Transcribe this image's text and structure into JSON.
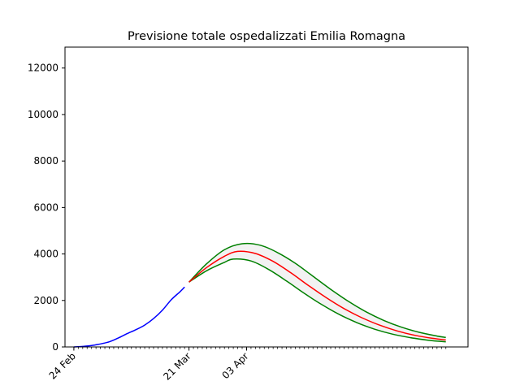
{
  "chart_data": {
    "type": "line",
    "title": "Previsione totale ospedalizzati Emilia Romagna",
    "xlabel": "",
    "ylabel": "",
    "x_axis": {
      "start": "2020-02-22",
      "end": "2020-05-23",
      "major_ticks": [
        {
          "date": "2020-02-24",
          "label": "24 Feb"
        },
        {
          "date": "2020-03-21",
          "label": "21 Mar"
        },
        {
          "date": "2020-04-03",
          "label": "03 Apr"
        }
      ],
      "minor_ticks_daily": true
    },
    "ylim": [
      0,
      12900
    ],
    "yticks": [
      0,
      2000,
      4000,
      6000,
      8000,
      10000,
      12000
    ],
    "grid": false,
    "series": [
      {
        "role": "observed",
        "color": "#0000ff",
        "points": [
          [
            "2020-02-24",
            0
          ],
          [
            "2020-02-26",
            20
          ],
          [
            "2020-02-28",
            60
          ],
          [
            "2020-03-01",
            130
          ],
          [
            "2020-03-03",
            220
          ],
          [
            "2020-03-05",
            380
          ],
          [
            "2020-03-07",
            570
          ],
          [
            "2020-03-09",
            740
          ],
          [
            "2020-03-11",
            940
          ],
          [
            "2020-03-13",
            1220
          ],
          [
            "2020-03-15",
            1580
          ],
          [
            "2020-03-17",
            2030
          ],
          [
            "2020-03-19",
            2380
          ],
          [
            "2020-03-20",
            2580
          ]
        ]
      },
      {
        "role": "forecast-upper",
        "color": "#008000",
        "points": [
          [
            "2020-03-21",
            2790
          ],
          [
            "2020-03-25",
            3580
          ],
          [
            "2020-03-29",
            4180
          ],
          [
            "2020-04-02",
            4440
          ],
          [
            "2020-04-06",
            4380
          ],
          [
            "2020-04-10",
            4060
          ],
          [
            "2020-04-14",
            3600
          ],
          [
            "2020-04-18",
            3040
          ],
          [
            "2020-04-22",
            2480
          ],
          [
            "2020-04-26",
            1960
          ],
          [
            "2020-04-30",
            1510
          ],
          [
            "2020-05-04",
            1140
          ],
          [
            "2020-05-08",
            850
          ],
          [
            "2020-05-12",
            630
          ],
          [
            "2020-05-16",
            470
          ],
          [
            "2020-05-18",
            410
          ]
        ]
      },
      {
        "role": "forecast-central",
        "color": "#ff0000",
        "points": [
          [
            "2020-03-21",
            2790
          ],
          [
            "2020-03-25",
            3420
          ],
          [
            "2020-03-29",
            3900
          ],
          [
            "2020-04-01",
            4110
          ],
          [
            "2020-04-05",
            4020
          ],
          [
            "2020-04-09",
            3680
          ],
          [
            "2020-04-13",
            3190
          ],
          [
            "2020-04-17",
            2640
          ],
          [
            "2020-04-21",
            2120
          ],
          [
            "2020-04-25",
            1650
          ],
          [
            "2020-04-29",
            1260
          ],
          [
            "2020-05-03",
            940
          ],
          [
            "2020-05-07",
            690
          ],
          [
            "2020-05-11",
            500
          ],
          [
            "2020-05-15",
            370
          ],
          [
            "2020-05-18",
            300
          ]
        ]
      },
      {
        "role": "forecast-lower",
        "color": "#008000",
        "points": [
          [
            "2020-03-21",
            2790
          ],
          [
            "2020-03-25",
            3280
          ],
          [
            "2020-03-29",
            3640
          ],
          [
            "2020-03-31",
            3780
          ],
          [
            "2020-04-04",
            3700
          ],
          [
            "2020-04-08",
            3330
          ],
          [
            "2020-04-12",
            2840
          ],
          [
            "2020-04-16",
            2310
          ],
          [
            "2020-04-20",
            1820
          ],
          [
            "2020-04-24",
            1390
          ],
          [
            "2020-04-28",
            1040
          ],
          [
            "2020-05-02",
            760
          ],
          [
            "2020-05-06",
            550
          ],
          [
            "2020-05-10",
            400
          ],
          [
            "2020-05-14",
            290
          ],
          [
            "2020-05-18",
            220
          ]
        ]
      }
    ],
    "band": {
      "between": [
        "forecast-upper",
        "forecast-lower"
      ],
      "color": "#f2f2f2"
    },
    "colors": {
      "axes": "#000000",
      "background": "#ffffff"
    }
  }
}
